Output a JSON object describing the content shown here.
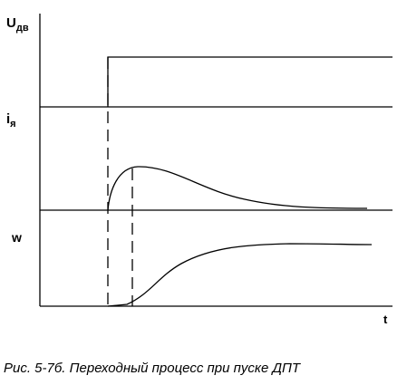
{
  "labels": {
    "voltage_symbol": "U",
    "voltage_subscript": "дв",
    "current_symbol": "i",
    "current_subscript": "я",
    "speed_symbol": "w",
    "time_symbol": "t"
  },
  "caption": "Рис. 5-7б. Переходный процесс при пуске ДПТ",
  "colors": {
    "ink": "#000000",
    "background": "#ffffff"
  }
}
